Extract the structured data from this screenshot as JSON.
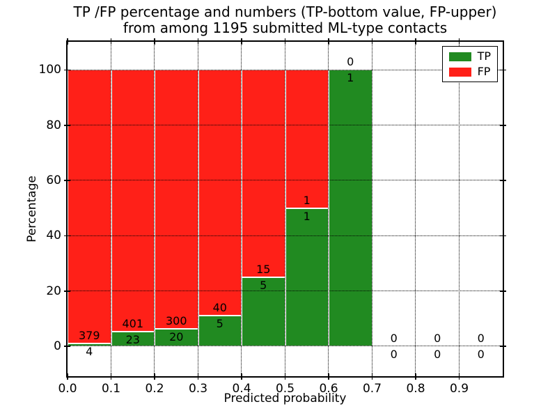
{
  "header": {
    "title_line1": "TP /FP percentage and numbers (TP-bottom value, FP-upper)",
    "title_line2": "from among 1195 submitted ML-type contacts"
  },
  "axes": {
    "xlabel": "Predicted probability",
    "ylabel": "Percentage"
  },
  "legend": {
    "entries": [
      {
        "label": "TP",
        "color": "#218a21"
      },
      {
        "label": "FP",
        "color": "#ff2018"
      }
    ]
  },
  "chart_data": {
    "type": "bar",
    "subtype": "100-percent-stacked-histogram-with-count-labels",
    "title": "TP /FP percentage and numbers (TP-bottom value, FP-upper)\nfrom among 1195 submitted ML-type contacts",
    "xlabel": "Predicted probability",
    "ylabel": "Percentage",
    "total_submitted_contacts": 1195,
    "xlim": [
      0.0,
      1.0
    ],
    "ylim": [
      -10.8,
      110.2
    ],
    "grid": true,
    "grid_style": "dotted",
    "legend_position": "upper right",
    "background": "#ffffff",
    "bar_edge_color": "#ffffff",
    "bin_width": 0.1,
    "bin_starts": [
      0.0,
      0.1,
      0.2,
      0.3,
      0.4,
      0.5,
      0.6,
      0.7,
      0.8,
      0.9
    ],
    "x_ticks": [
      0.0,
      0.1,
      0.2,
      0.3,
      0.4,
      0.5,
      0.6,
      0.7,
      0.8,
      0.9
    ],
    "x_tick_labels": [
      "0.0",
      "0.1",
      "0.2",
      "0.3",
      "0.4",
      "0.5",
      "0.6",
      "0.7",
      "0.8",
      "0.9"
    ],
    "y_ticks": [
      0,
      20,
      40,
      60,
      80,
      100
    ],
    "y_tick_labels": [
      "0",
      "20",
      "40",
      "60",
      "80",
      "100"
    ],
    "series": [
      {
        "name": "TP",
        "color": "#218a21",
        "values": [
          4,
          23,
          20,
          5,
          5,
          1,
          1,
          0,
          0,
          0
        ]
      },
      {
        "name": "FP",
        "color": "#ff2018",
        "values": [
          379,
          401,
          300,
          40,
          15,
          1,
          0,
          0,
          0,
          0
        ]
      }
    ],
    "tp_percent_by_bin": [
      1.0,
      5.4,
      6.3,
      11.1,
      25.0,
      50.0,
      100.0,
      0,
      0,
      0
    ]
  }
}
